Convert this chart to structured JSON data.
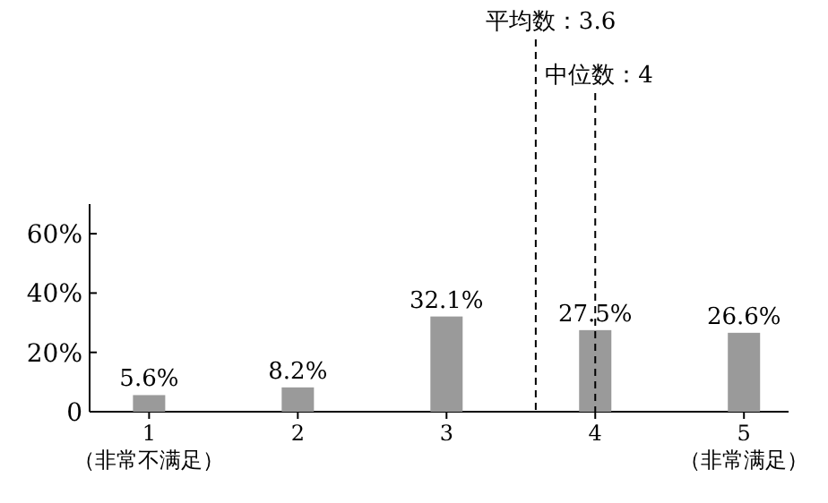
{
  "chart_data": {
    "type": "bar",
    "x": [
      1,
      2,
      3,
      4,
      5
    ],
    "values": [
      5.6,
      8.2,
      32.1,
      27.5,
      26.6
    ],
    "value_labels": [
      "5.6%",
      "8.2%",
      "32.1%",
      "27.5%",
      "26.6%"
    ],
    "color": "#9a9a9a",
    "xlim": [
      0.6,
      5.3
    ],
    "xticks": [
      {
        "value": 1,
        "label": "1\n（非常不满足）"
      },
      {
        "value": 2,
        "label": "2"
      },
      {
        "value": 3,
        "label": "3"
      },
      {
        "value": 4,
        "label": "4"
      },
      {
        "value": 5,
        "label": "5\n（非常满足）"
      }
    ],
    "ylim": [
      0,
      70
    ],
    "yticks": [
      0,
      {
        "value": 20,
        "label": "20%"
      },
      {
        "value": 40,
        "label": "40%"
      },
      {
        "value": 60,
        "label": "60%"
      }
    ],
    "ref_lines": [
      {
        "axis": "x",
        "value": 3.6,
        "label": "平均数：3.6",
        "line_style": "dashed"
      },
      {
        "axis": "x",
        "value": 4,
        "label": "中位数：4",
        "line_style": "dashed"
      }
    ],
    "grid": false
  }
}
